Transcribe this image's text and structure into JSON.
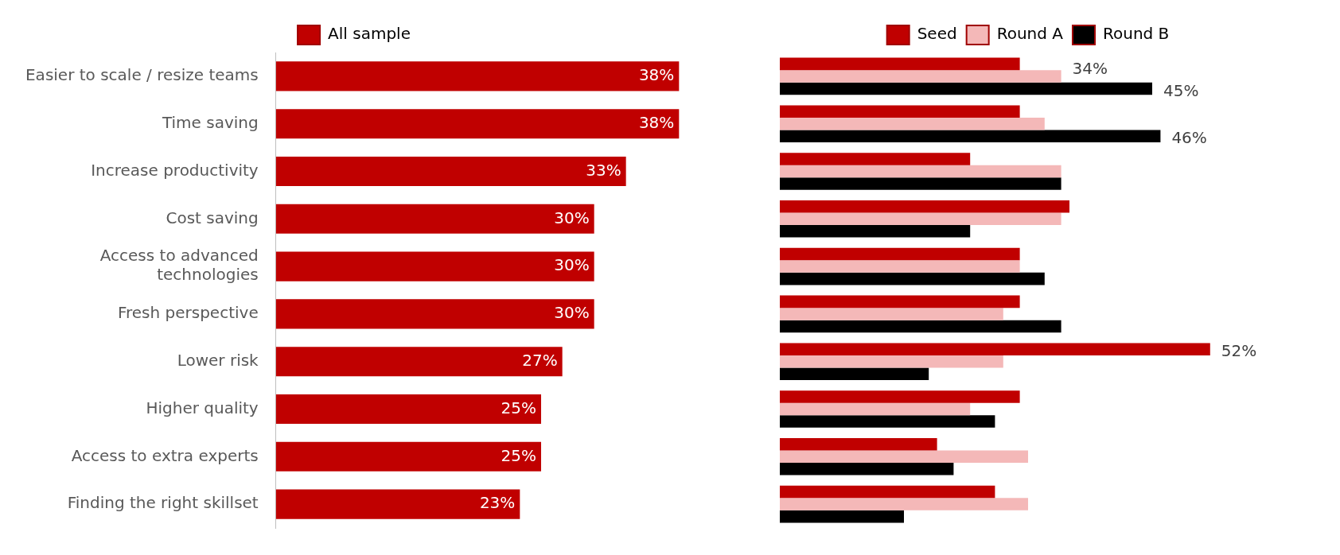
{
  "chart_data": [
    {
      "type": "bar",
      "orientation": "horizontal",
      "categories": [
        "Easier to scale / resize teams",
        "Time saving",
        "Increase productivity",
        "Cost saving",
        "Access to advanced technologies",
        "Fresh perspective",
        "Lower risk",
        "Higher quality",
        "Access to extra experts",
        "Finding the right skillset"
      ],
      "series": [
        {
          "name": "All sample",
          "color": "#c00000",
          "values": [
            38,
            38,
            33,
            30,
            30,
            30,
            27,
            25,
            25,
            23
          ],
          "value_labels": [
            "38%",
            "38%",
            "33%",
            "30%",
            "30%",
            "30%",
            "27%",
            "25%",
            "25%",
            "23%"
          ]
        }
      ],
      "legend": "top"
    },
    {
      "type": "bar",
      "orientation": "horizontal",
      "categories": [
        null,
        null,
        null,
        null,
        null,
        null,
        null,
        null,
        null,
        null
      ],
      "tick_labels": false,
      "series": [
        {
          "name": "Seed",
          "color": "#c00000",
          "values": [
            29,
            29,
            23,
            35,
            29,
            29,
            52,
            29,
            19,
            26
          ],
          "value_labels": [
            null,
            null,
            null,
            null,
            null,
            null,
            "52%",
            null,
            null,
            null
          ]
        },
        {
          "name": "Round A",
          "color": "#f4b8b8",
          "values": [
            34,
            32,
            34,
            34,
            29,
            27,
            27,
            23,
            30,
            30
          ],
          "value_labels": [
            "34%",
            null,
            null,
            null,
            null,
            null,
            null,
            null,
            null,
            null
          ]
        },
        {
          "name": "Round B",
          "color": "#000000",
          "values": [
            45,
            46,
            34,
            23,
            32,
            34,
            18,
            26,
            21,
            15
          ],
          "value_labels": [
            "45%",
            "46%",
            null,
            null,
            null,
            null,
            null,
            null,
            null,
            null
          ]
        }
      ],
      "legend": "top"
    }
  ]
}
